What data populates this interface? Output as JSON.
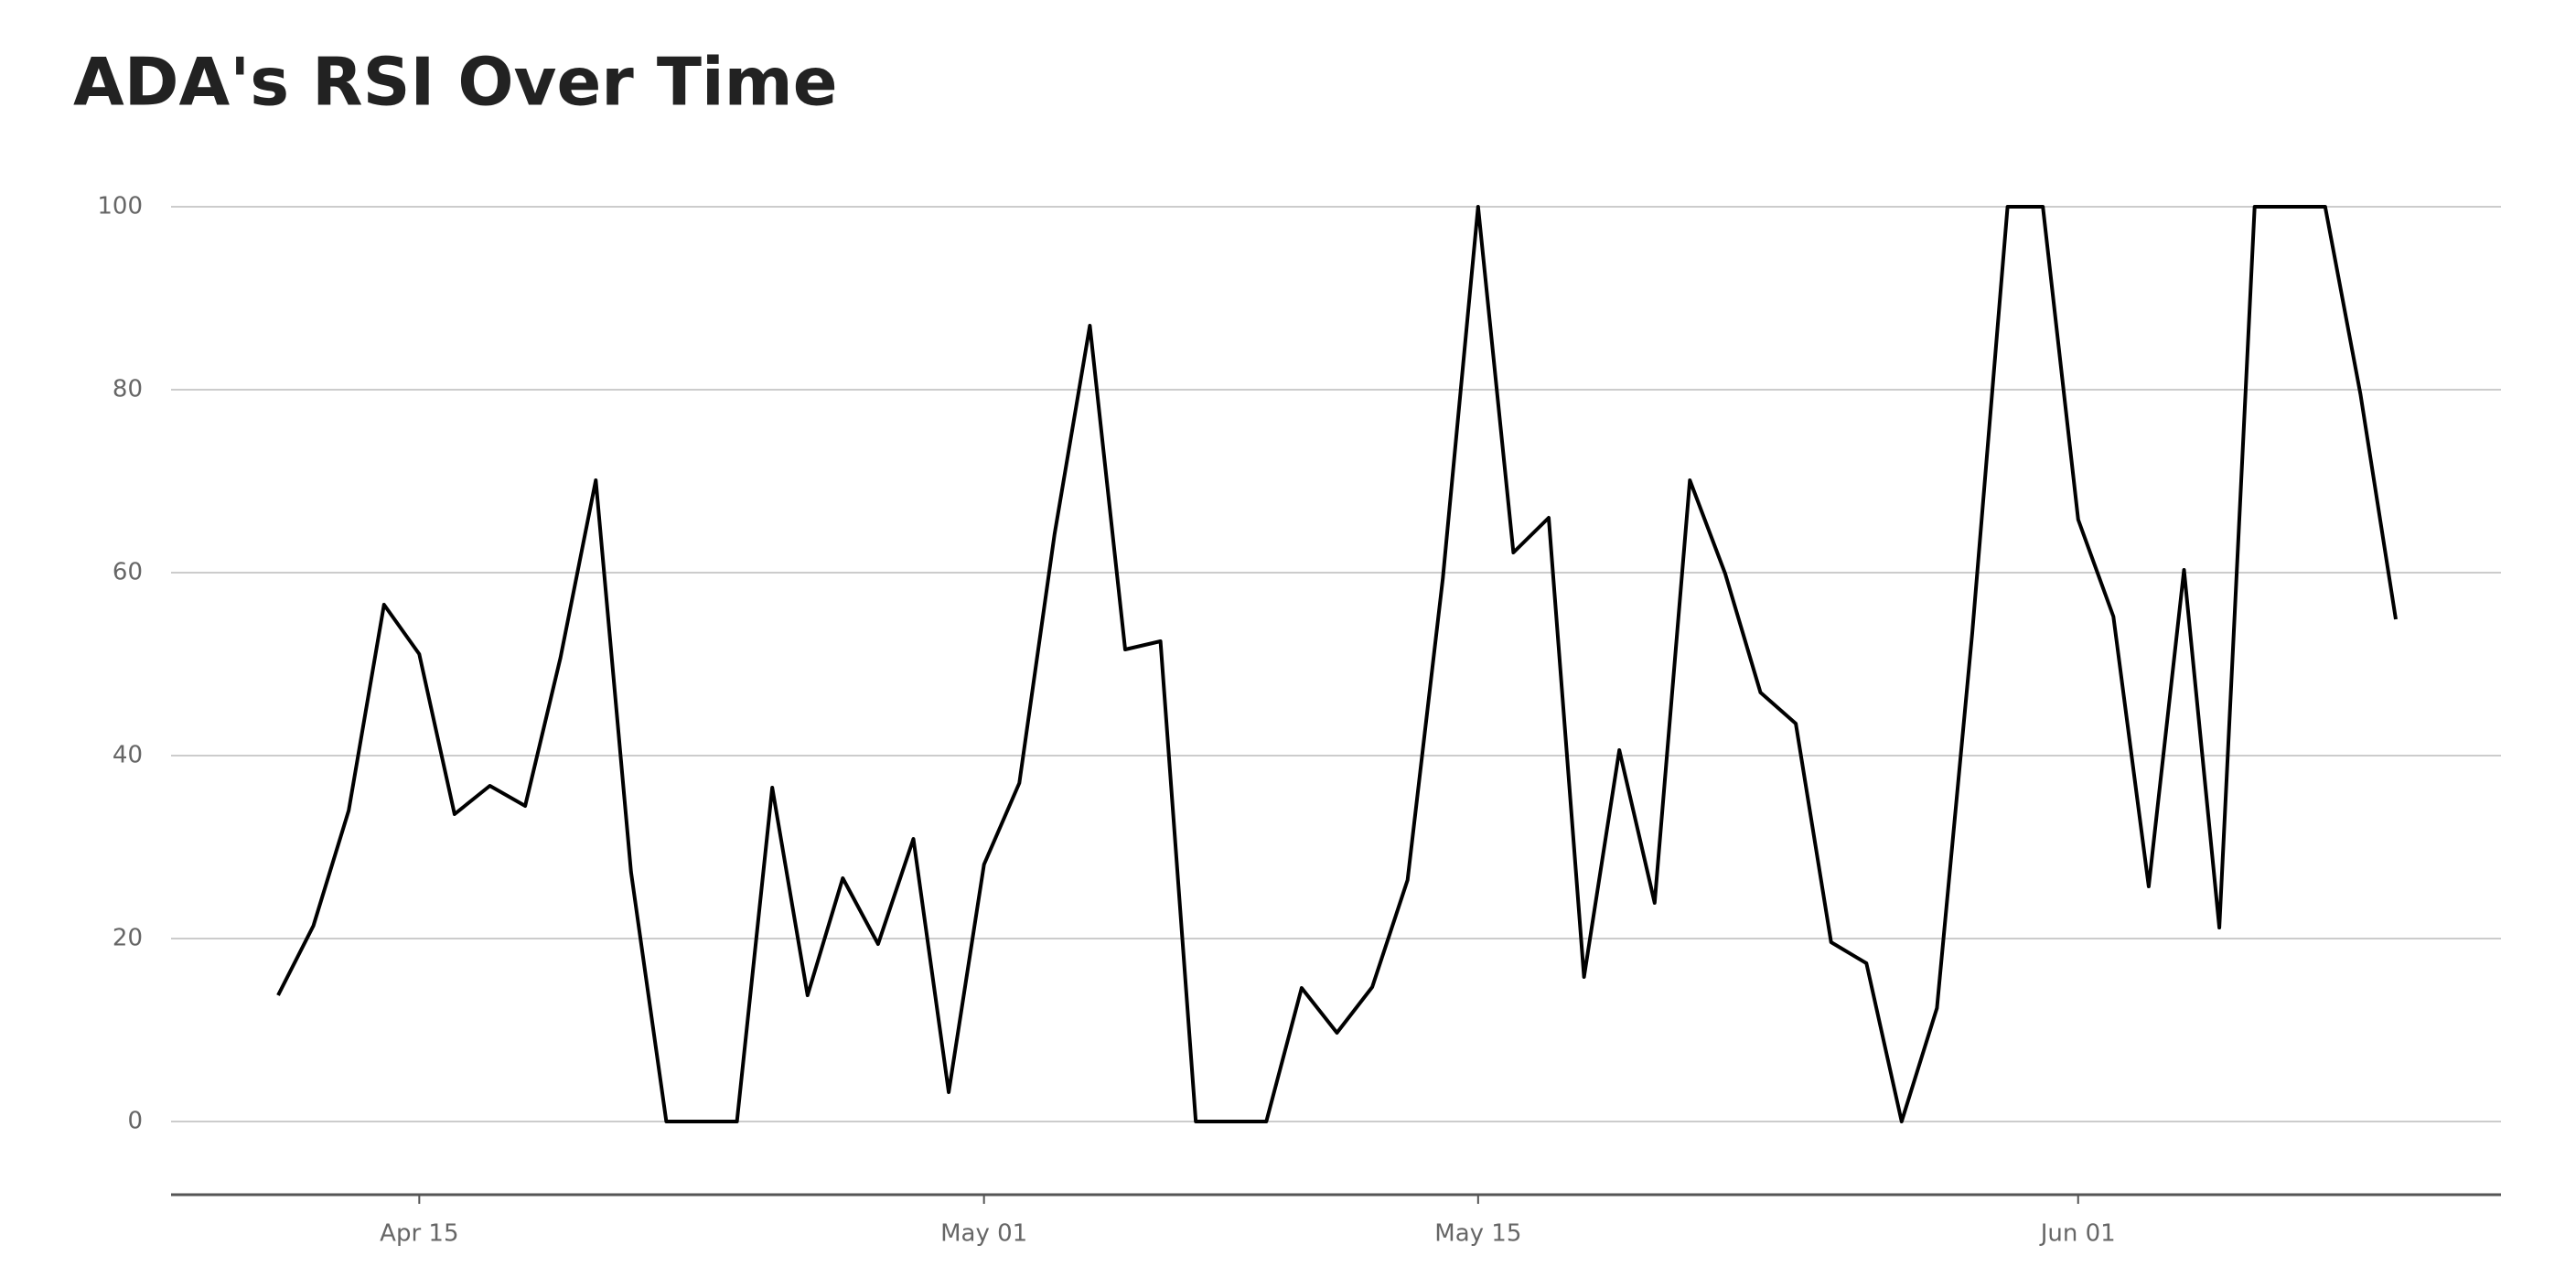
{
  "chart_data": {
    "type": "line",
    "title": "ADA's RSI Over Time",
    "x": [
      "04-11",
      "04-12",
      "04-13",
      "04-14",
      "04-15",
      "04-16",
      "04-17",
      "04-18",
      "04-19",
      "04-20",
      "04-21",
      "04-22",
      "04-23",
      "04-24",
      "04-25",
      "04-26",
      "04-27",
      "04-28",
      "04-29",
      "04-30",
      "05-01",
      "05-02",
      "05-03",
      "05-04",
      "05-05",
      "05-06",
      "05-07",
      "05-08",
      "05-09",
      "05-10",
      "05-11",
      "05-12",
      "05-13",
      "05-14",
      "05-15",
      "05-16",
      "05-17",
      "05-18",
      "05-19",
      "05-20",
      "05-21",
      "05-22",
      "05-23",
      "05-24",
      "05-25",
      "05-26",
      "05-27",
      "05-28",
      "05-29",
      "05-30",
      "05-31",
      "06-01",
      "06-02",
      "06-03",
      "06-04",
      "06-05",
      "06-06",
      "06-07",
      "06-08",
      "06-09",
      "06-10"
    ],
    "series": [
      {
        "name": "RSI",
        "color": "#000000",
        "values": [
          13.8,
          21.4,
          34,
          56.5,
          51.1,
          33.6,
          36.7,
          34.5,
          50.7,
          70.1,
          27.3,
          0,
          0,
          0,
          36.5,
          13.8,
          26.6,
          19.4,
          30.9,
          3.2,
          28.1,
          37,
          64.2,
          87,
          51.6,
          52.5,
          0,
          0,
          0,
          14.6,
          9.7,
          14.7,
          26.4,
          59.4,
          100,
          62.2,
          66,
          15.8,
          40.6,
          23.9,
          70.1,
          59.9,
          46.9,
          43.5,
          19.6,
          17.3,
          0,
          12.4,
          53.4,
          100,
          100,
          65.8,
          55.2,
          25.7,
          60.3,
          21.2,
          100,
          100,
          100,
          79.5,
          54.9
        ]
      }
    ],
    "xticks": [
      {
        "value": "04-15",
        "label": "Apr 15"
      },
      {
        "value": "05-01",
        "label": "May 01"
      },
      {
        "value": "05-15",
        "label": "May 15"
      },
      {
        "value": "06-01",
        "label": "Jun 01"
      }
    ],
    "ylim": [
      -8,
      108
    ],
    "yticks": [
      0,
      20,
      40,
      60,
      80,
      100
    ],
    "grid": true
  }
}
